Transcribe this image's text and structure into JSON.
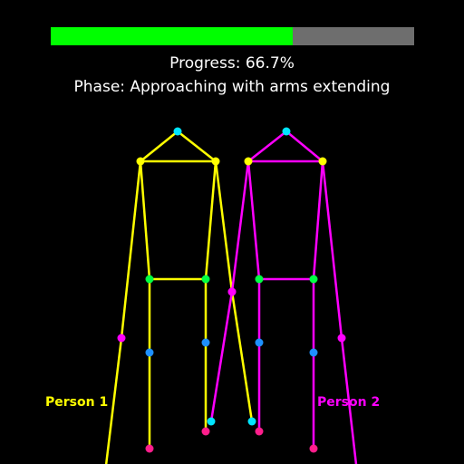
{
  "progress": {
    "fraction": 0.667,
    "text": "Progress: 66.7%",
    "fill_color": "#00ff00",
    "track_color": "#6e6e6e"
  },
  "phase": {
    "text": "Phase: Approaching with arms extending"
  },
  "persons": [
    {
      "label": "Person 1",
      "color": "#ffff00"
    },
    {
      "label": "Person 2",
      "color": "#ff00ff"
    }
  ],
  "joint_colors": {
    "head": "#00e5ff",
    "shoulder": "#ffff00",
    "elbow": "#ff00ff",
    "wrist": "#00e5ff",
    "hip": "#00ff44",
    "knee": "#1e90ff",
    "ankle": "#ff1e8c"
  }
}
